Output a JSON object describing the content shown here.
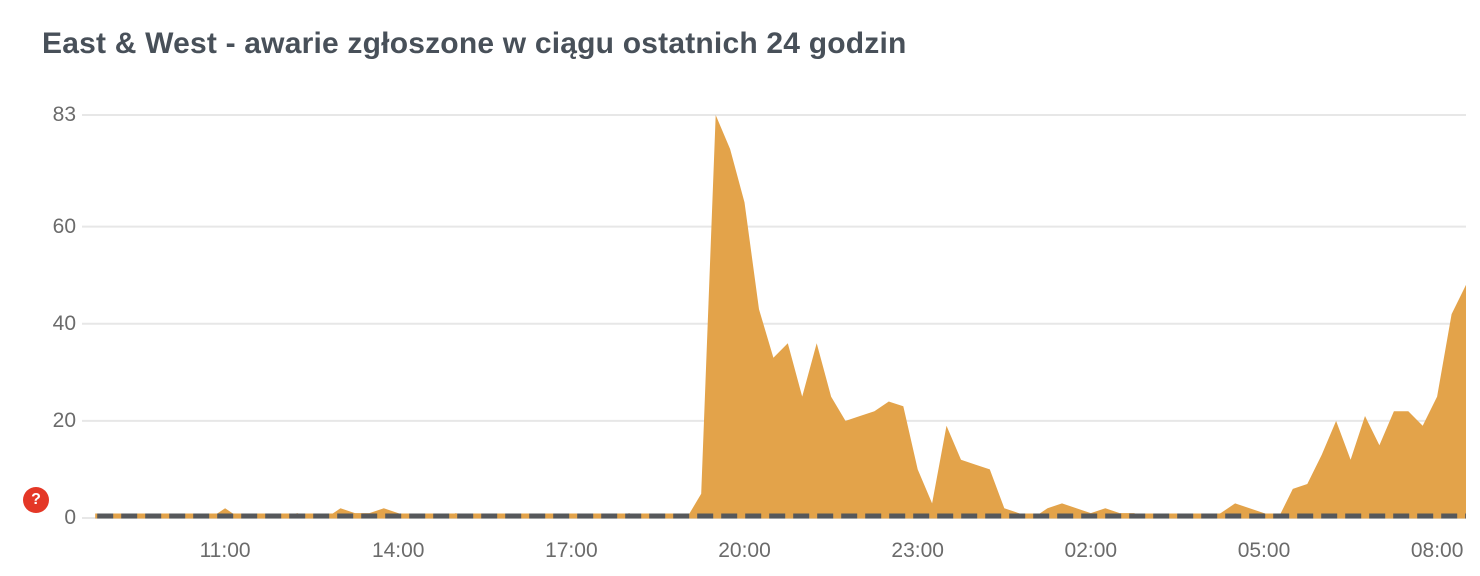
{
  "title": "East & West - awarie zgłoszone w ciągu ostatnich 24 godzin",
  "help_badge": {
    "label": "?"
  },
  "colors": {
    "area": "#e3a34a",
    "grid": "#e7e7e7",
    "baseline_dash": "#56585b",
    "axis_label": "#6b6b6b",
    "title": "#485059",
    "badge_bg": "#e43726",
    "badge_text": "#ffffff"
  },
  "chart_data": {
    "type": "area",
    "title": "East & West - awarie zgłoszone w ciągu ostatnich 24 godzin",
    "xlabel": "",
    "ylabel": "",
    "ylim": [
      0,
      83
    ],
    "grid": "horizontal-only",
    "legend": "none",
    "yticks": [
      0,
      20,
      40,
      60,
      83
    ],
    "xticks": [
      "11:00",
      "14:00",
      "17:00",
      "20:00",
      "23:00",
      "02:00",
      "05:00",
      "08:00"
    ],
    "x": [
      "08:45",
      "09:00",
      "09:15",
      "09:30",
      "09:45",
      "10:00",
      "10:15",
      "10:30",
      "10:45",
      "11:00",
      "11:15",
      "11:30",
      "11:45",
      "12:00",
      "12:15",
      "12:30",
      "12:45",
      "13:00",
      "13:15",
      "13:30",
      "13:45",
      "14:00",
      "14:15",
      "14:30",
      "14:45",
      "15:00",
      "15:15",
      "15:30",
      "15:45",
      "16:00",
      "16:15",
      "16:30",
      "16:45",
      "17:00",
      "17:15",
      "17:30",
      "17:45",
      "18:00",
      "18:15",
      "18:30",
      "18:45",
      "19:00",
      "19:15",
      "19:30",
      "19:45",
      "20:00",
      "20:15",
      "20:30",
      "20:45",
      "21:00",
      "21:15",
      "21:30",
      "21:45",
      "22:00",
      "22:15",
      "22:30",
      "22:45",
      "23:00",
      "23:15",
      "23:30",
      "23:45",
      "00:00",
      "00:15",
      "00:30",
      "00:45",
      "01:00",
      "01:15",
      "01:30",
      "01:45",
      "02:00",
      "02:15",
      "02:30",
      "02:45",
      "03:00",
      "03:15",
      "03:30",
      "03:45",
      "04:00",
      "04:15",
      "04:30",
      "04:45",
      "05:00",
      "05:15",
      "05:30",
      "05:45",
      "06:00",
      "06:15",
      "06:30",
      "06:45",
      "07:00",
      "07:15",
      "07:30",
      "07:45",
      "08:00",
      "08:15",
      "08:30"
    ],
    "values": [
      0,
      0,
      0,
      0,
      0,
      0,
      0,
      0,
      0,
      2,
      0,
      0,
      0,
      0,
      1,
      0,
      0,
      2,
      1,
      1,
      2,
      1,
      0,
      0,
      0,
      1,
      0,
      0,
      0,
      0,
      0,
      0,
      0,
      0,
      0,
      0,
      0,
      1,
      0,
      0,
      0,
      0,
      5,
      83,
      76,
      65,
      43,
      33,
      36,
      25,
      36,
      25,
      20,
      21,
      22,
      24,
      23,
      10,
      3,
      19,
      12,
      11,
      10,
      2,
      1,
      0,
      2,
      3,
      2,
      1,
      2,
      1,
      1,
      0,
      0,
      0,
      0,
      0,
      1,
      3,
      2,
      1,
      0,
      6,
      7,
      13,
      20,
      12,
      21,
      15,
      22,
      22,
      19,
      25,
      42,
      48
    ]
  }
}
